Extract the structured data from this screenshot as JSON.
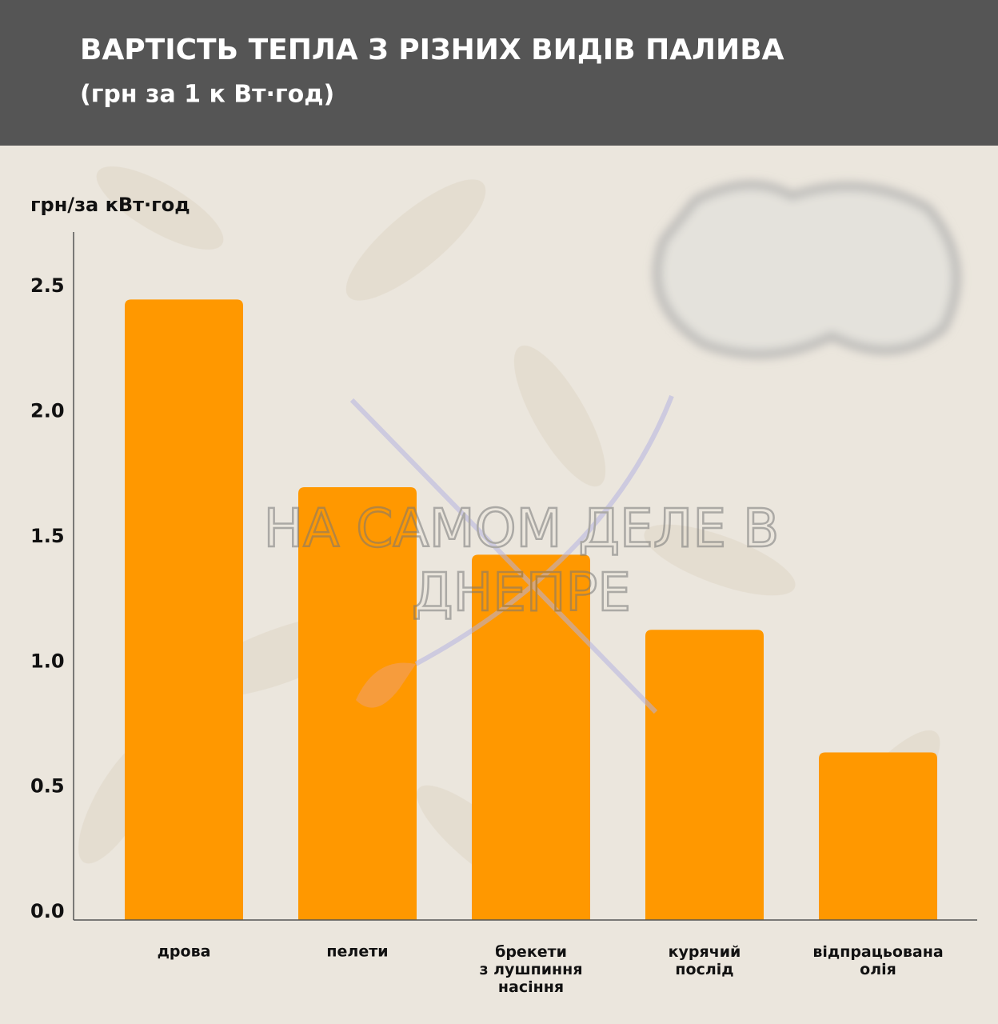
{
  "chart_data": {
    "type": "bar",
    "title": "ВАРТІСТЬ ТЕПЛА З РІЗНИХ ВИДІВ ПАЛИВА",
    "subtitle": "(грн за 1 к Вт·год)",
    "y_label": "грн/за кВт·год",
    "watermark": [
      "НА САМОМ ДЕЛЕ В",
      "ДНЕПРЕ"
    ],
    "categories": [
      "дрова",
      "пелети",
      "брекети\nз лушпиння\nнасіння",
      "курячий\nпослід",
      "відпрацьована\nолія"
    ],
    "values": [
      2.48,
      1.73,
      1.46,
      1.16,
      0.67
    ],
    "color": "#ff9800",
    "ylim": [
      0,
      2.75
    ],
    "yticks": [
      {
        "value": 0,
        "label": "0.0"
      },
      0.5,
      {
        "value": 1,
        "label": "1.0"
      },
      1.5,
      {
        "value": 2,
        "label": "2.0"
      },
      2.5
    ],
    "grid": false
  }
}
